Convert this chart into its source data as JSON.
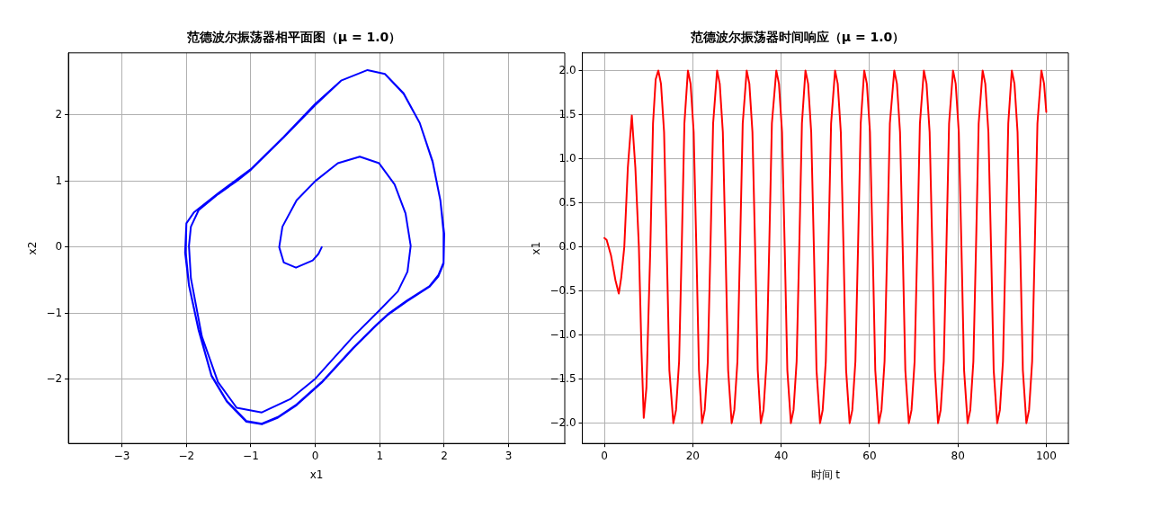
{
  "chart_data": [
    {
      "type": "line",
      "title": "范德波尔振荡器相平面图（μ = 1.0）",
      "xlabel": "x1",
      "ylabel": "x2",
      "grid": true,
      "xlim": [
        -3.83,
        3.87
      ],
      "ylim": [
        -2.97,
        2.94
      ],
      "xticks": [
        {
          "value": -3,
          "label": "−3"
        },
        {
          "value": -2,
          "label": "−2"
        },
        {
          "value": -1,
          "label": "−1"
        },
        0,
        1,
        2,
        3
      ],
      "yticks": [
        {
          "value": -2,
          "label": "−2"
        },
        {
          "value": -1,
          "label": "−1"
        },
        0,
        1,
        2
      ],
      "series": [
        {
          "color": "#0000ff",
          "x": [
            0.1,
            0.05,
            -0.04,
            -0.3,
            -0.49,
            -0.56,
            -0.51,
            -0.29,
            0,
            0.35,
            0.69,
            0.99,
            1.23,
            1.4,
            1.48,
            1.43,
            1.28,
            0.99,
            0.59,
            0,
            -0.39,
            -0.83,
            -1.22,
            -1.51,
            -1.76,
            -1.93,
            -1.96,
            -1.93,
            -1.81,
            -1.51,
            -1.22,
            -1,
            -0.49,
            0,
            0.4,
            0.81,
            1.08,
            1.37,
            1.62,
            1.82,
            1.94,
            1.99,
            1.99,
            1.91,
            1.77,
            1.42,
            1.13,
            0.94,
            0.59,
            0.1,
            -0.29,
            -0.58,
            -0.83,
            -1.07,
            -1.37,
            -1.61,
            -1.81,
            -1.96,
            -2.01,
            -2,
            -1.88,
            -1.5,
            -1,
            -0.49,
            0,
            0.4,
            0.81,
            1.08,
            1.37,
            1.62,
            1.82,
            1.94,
            2,
            1.99,
            1.91,
            1.77,
            1.42,
            1.13,
            0.94,
            0.59,
            0.1,
            -0.29,
            -0.58,
            -0.83,
            -1.07,
            -1.37,
            -1.61,
            -1.81,
            -1.96,
            -2.02,
            -2,
            -1.88
          ],
          "values": [
            0,
            -0.1,
            -0.2,
            -0.31,
            -0.23,
            0,
            0.31,
            0.71,
            1,
            1.27,
            1.37,
            1.27,
            0.95,
            0.51,
            0.02,
            -0.37,
            -0.67,
            -0.96,
            -1.35,
            -1.99,
            -2.3,
            -2.5,
            -2.43,
            -2.04,
            -1.35,
            -0.47,
            0.02,
            0.31,
            0.56,
            0.8,
            1,
            1.17,
            1.66,
            2.15,
            2.52,
            2.68,
            2.62,
            2.32,
            1.88,
            1.29,
            0.71,
            0.22,
            -0.23,
            -0.42,
            -0.59,
            -0.81,
            -1.01,
            -1.18,
            -1.52,
            -2.04,
            -2.38,
            -2.57,
            -2.67,
            -2.63,
            -2.33,
            -1.94,
            -1.25,
            -0.57,
            -0.08,
            0.36,
            0.53,
            0.82,
            1.18,
            1.67,
            2.17,
            2.52,
            2.68,
            2.62,
            2.33,
            1.88,
            1.3,
            0.71,
            0.2,
            -0.25,
            -0.44,
            -0.6,
            -0.82,
            -1.02,
            -1.19,
            -1.53,
            -2.05,
            -2.39,
            -2.58,
            -2.68,
            -2.64,
            -2.34,
            -1.95,
            -1.26,
            -0.58,
            -0.08,
            0.36,
            0.53
          ]
        }
      ]
    },
    {
      "type": "line",
      "title": "范德波尔振荡器时间响应（μ = 1.0）",
      "xlabel": "时间 t",
      "ylabel": "x1",
      "grid": true,
      "xlim": [
        -5,
        105
      ],
      "ylim": [
        -2.23,
        2.2
      ],
      "xticks": [
        0,
        20,
        40,
        60,
        80,
        100
      ],
      "yticks": [
        {
          "value": -2,
          "label": "−2.0"
        },
        {
          "value": -1.5,
          "label": "−1.5"
        },
        {
          "value": -1,
          "label": "−1.0"
        },
        {
          "value": -0.5,
          "label": "−0.5"
        },
        {
          "value": 0,
          "label": "0.0"
        },
        {
          "value": 0.5,
          "label": "0.5"
        },
        {
          "value": 1,
          "label": "1.0"
        },
        {
          "value": 1.5,
          "label": "1.5"
        },
        {
          "value": 2,
          "label": "2.0"
        }
      ],
      "series": [
        {
          "color": "#ff0000",
          "x": [
            0,
            0.5,
            1.5,
            2.5,
            3.25,
            3.8,
            4.5,
            5.3,
            6.2,
            7.0,
            7.8,
            8.4,
            8.9,
            9.5,
            10.4,
            11.0,
            11.6,
            12.2,
            12.8,
            13.5,
            14.1,
            14.7,
            15.6,
            16.2,
            16.9,
            17.5,
            18.1,
            18.9,
            19.5,
            20.2,
            20.8,
            21.4,
            22.1,
            22.7,
            23.4,
            24.0,
            24.6,
            25.5,
            26.1,
            26.8,
            27.4,
            28.0,
            28.8,
            29.4,
            30.1,
            30.7,
            31.3,
            32.2,
            32.8,
            33.5,
            34.1,
            34.7,
            35.4,
            36.0,
            36.7,
            37.3,
            37.9,
            38.9,
            39.5,
            40.2,
            40.8,
            41.4,
            42.2,
            42.8,
            43.5,
            44.1,
            44.7,
            45.5,
            46.1,
            46.8,
            47.4,
            48.0,
            48.8,
            49.4,
            50.1,
            50.7,
            51.3,
            52.2,
            52.8,
            53.5,
            54.1,
            54.7,
            55.5,
            56.1,
            56.8,
            57.4,
            58.0,
            58.8,
            59.4,
            60.1,
            60.7,
            61.3,
            62.1,
            62.7,
            63.4,
            64.0,
            64.6,
            65.6,
            66.2,
            66.9,
            67.5,
            68.1,
            68.9,
            69.5,
            70.2,
            70.8,
            71.4,
            72.3,
            72.9,
            73.6,
            74.2,
            74.8,
            75.5,
            76.1,
            76.8,
            77.4,
            78.0,
            78.9,
            79.5,
            80.2,
            80.8,
            81.4,
            82.2,
            82.8,
            83.5,
            84.1,
            84.7,
            85.6,
            86.2,
            86.9,
            87.5,
            88.1,
            88.9,
            89.5,
            90.2,
            90.8,
            91.4,
            92.2,
            92.8,
            93.5,
            94.1,
            94.7,
            95.5,
            96.1,
            96.8,
            97.4,
            98.0,
            98.9,
            99.5,
            100
          ],
          "values": [
            0.1,
            0.08,
            -0.1,
            -0.38,
            -0.53,
            -0.35,
            0,
            0.9,
            1.49,
            0.9,
            0,
            -1.2,
            -1.94,
            -1.6,
            0,
            1.4,
            1.9,
            2,
            1.85,
            1.3,
            0,
            -1.4,
            -2,
            -1.85,
            -1.3,
            0,
            1.4,
            2,
            1.85,
            1.3,
            0,
            -1.4,
            -2,
            -1.85,
            -1.3,
            0,
            1.4,
            2,
            1.85,
            1.3,
            0,
            -1.4,
            -2,
            -1.85,
            -1.3,
            0,
            1.4,
            2,
            1.85,
            1.3,
            0,
            -1.4,
            -2,
            -1.85,
            -1.3,
            0,
            1.4,
            2,
            1.85,
            1.3,
            0,
            -1.4,
            -2,
            -1.85,
            -1.3,
            0,
            1.4,
            2,
            1.85,
            1.3,
            0,
            -1.4,
            -2,
            -1.85,
            -1.3,
            0,
            1.4,
            2,
            1.85,
            1.3,
            0,
            -1.4,
            -2,
            -1.85,
            -1.3,
            0,
            1.4,
            2,
            1.85,
            1.3,
            0,
            -1.4,
            -2,
            -1.85,
            -1.3,
            0,
            1.4,
            2,
            1.85,
            1.3,
            0,
            -1.4,
            -2,
            -1.85,
            -1.3,
            0,
            1.4,
            2,
            1.85,
            1.3,
            0,
            -1.4,
            -2,
            -1.85,
            -1.3,
            0,
            1.4,
            2,
            1.85,
            1.3,
            0,
            -1.4,
            -2,
            -1.85,
            -1.3,
            0,
            1.4,
            2,
            1.85,
            1.3,
            0,
            -1.4,
            -2,
            -1.85,
            -1.3,
            0,
            1.4,
            2,
            1.85,
            1.3,
            0,
            -1.4,
            -2,
            -1.85,
            -1.3,
            0,
            1.4,
            2,
            1.85,
            1.53
          ]
        }
      ]
    }
  ]
}
